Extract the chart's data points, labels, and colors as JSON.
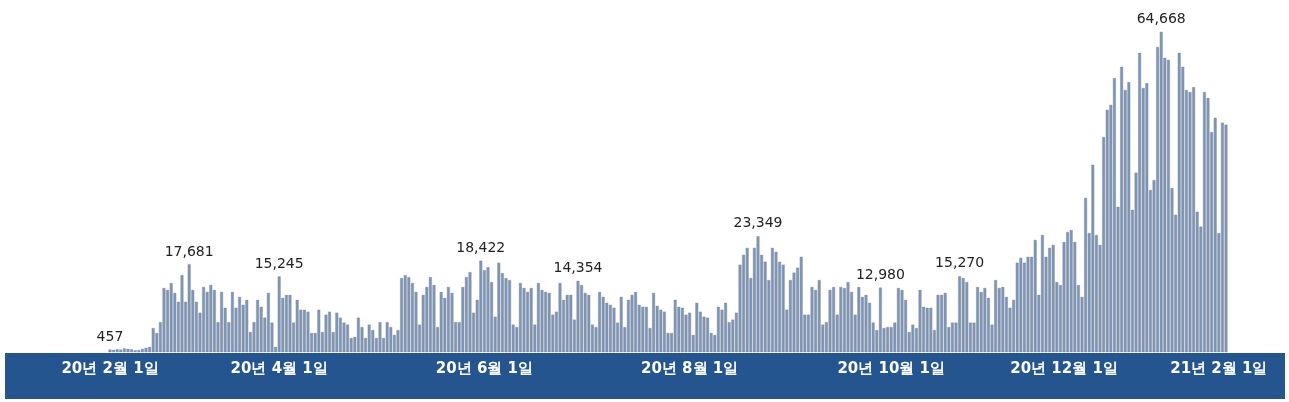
{
  "chart_data": {
    "type": "bar",
    "color": "#7b96bd",
    "categories": [
      "20년 2월 1일",
      null,
      null,
      null,
      null,
      null,
      null,
      null,
      null,
      null,
      null,
      null,
      null,
      null,
      null,
      null,
      null,
      null,
      null,
      null,
      null,
      null,
      null,
      null,
      null,
      null,
      null,
      null,
      null,
      null,
      null,
      null,
      null,
      null,
      null,
      null,
      null,
      null,
      null,
      null,
      null,
      null,
      null,
      null,
      null,
      null,
      null,
      "20년 4월 1일",
      null,
      null,
      null,
      null,
      null,
      null,
      null,
      null,
      null,
      null,
      null,
      null,
      null,
      null,
      null,
      null,
      null,
      null,
      null,
      null,
      null,
      null,
      null,
      null,
      null,
      null,
      null,
      null,
      null,
      null,
      null,
      null,
      null,
      null,
      null,
      null,
      null,
      null,
      null,
      null,
      null,
      null,
      null,
      null,
      null,
      null,
      null,
      null,
      null,
      null,
      null,
      null,
      null,
      null,
      null,
      null,
      "20년 6월 1일",
      null,
      null,
      null,
      null,
      null,
      null,
      null,
      null,
      null,
      null,
      null,
      null,
      null,
      null,
      null,
      null,
      null,
      null,
      null,
      null,
      null,
      null,
      null,
      null,
      null,
      null,
      null,
      null,
      null,
      null,
      null,
      null,
      null,
      null,
      null,
      null,
      null,
      null,
      null,
      null,
      null,
      null,
      null,
      null,
      null,
      null,
      null,
      null,
      null,
      null,
      null,
      null,
      null,
      null,
      null,
      null,
      "20년 8월 1일",
      null,
      null,
      null,
      null,
      null,
      null,
      null,
      null,
      null,
      null,
      null,
      null,
      null,
      null,
      null,
      null,
      null,
      null,
      null,
      null,
      null,
      null,
      null,
      null,
      null,
      null,
      null,
      null,
      null,
      null,
      null,
      null,
      null,
      null,
      null,
      null,
      null,
      null,
      null,
      null,
      null,
      null,
      null,
      null,
      null,
      null,
      null,
      null,
      null,
      null,
      null,
      null,
      null,
      null,
      null,
      "20년 10월 1일",
      null,
      null,
      null,
      null,
      null,
      null,
      null,
      null,
      null,
      null,
      null,
      null,
      null,
      null,
      null,
      null,
      null,
      null,
      null,
      null,
      null,
      null,
      null,
      null,
      null,
      null,
      null,
      null,
      null,
      null,
      null,
      null,
      null,
      null,
      null,
      null,
      null,
      null,
      null,
      null,
      null,
      null,
      null,
      null,
      null,
      null,
      null,
      "20년 12월 1일",
      null,
      null,
      null,
      null,
      null,
      null,
      null,
      null,
      null,
      null,
      null,
      null,
      null,
      null,
      null,
      null,
      null,
      null,
      null,
      null,
      null,
      null,
      null,
      null,
      null,
      null,
      null,
      null,
      null,
      null,
      null,
      null,
      null,
      null,
      null,
      null,
      null,
      null,
      null,
      null,
      null,
      null,
      "21년 2월 1일",
      null,
      null
    ],
    "values": [
      457,
      400,
      500,
      450,
      700,
      600,
      500,
      300,
      350,
      600,
      800,
      1000,
      4800,
      3800,
      6000,
      12900,
      12500,
      13900,
      11900,
      10100,
      15500,
      10100,
      17681,
      12500,
      10100,
      7900,
      13100,
      12100,
      13500,
      12500,
      6000,
      12100,
      8900,
      6000,
      12100,
      8900,
      11100,
      9500,
      10500,
      4000,
      6000,
      10500,
      9100,
      6900,
      11900,
      5900,
      1000,
      15245,
      10900,
      11500,
      11500,
      5900,
      10500,
      8500,
      8500,
      8100,
      3800,
      3800,
      8500,
      4000,
      7500,
      8100,
      4000,
      7900,
      6900,
      5900,
      5500,
      2800,
      3000,
      6900,
      5000,
      2800,
      5500,
      4400,
      2800,
      6000,
      2800,
      6000,
      5000,
      3400,
      4400,
      14900,
      15500,
      15100,
      13900,
      12100,
      5500,
      11500,
      13100,
      15100,
      13500,
      5000,
      12100,
      10900,
      13100,
      11900,
      6000,
      6000,
      13100,
      15100,
      16100,
      7900,
      10500,
      18422,
      16500,
      17100,
      14100,
      7100,
      18000,
      15900,
      14900,
      14500,
      5500,
      5000,
      13900,
      12900,
      12100,
      12900,
      5500,
      13900,
      12500,
      12100,
      11900,
      7500,
      8100,
      13900,
      10500,
      11500,
      11500,
      6500,
      14354,
      13500,
      11900,
      11500,
      5500,
      5000,
      12100,
      11100,
      9900,
      9500,
      8900,
      5900,
      11100,
      5000,
      10500,
      11500,
      12100,
      9500,
      9100,
      9100,
      4800,
      11900,
      9300,
      8500,
      8100,
      3800,
      3800,
      10500,
      9100,
      8900,
      7500,
      7900,
      3400,
      9900,
      8100,
      7100,
      6900,
      3800,
      3400,
      9100,
      8500,
      9900,
      6000,
      6500,
      7900,
      17600,
      19600,
      21000,
      14900,
      21000,
      23349,
      19600,
      18200,
      14500,
      21000,
      20200,
      18200,
      17600,
      8500,
      14500,
      16000,
      17000,
      19200,
      7500,
      7500,
      13100,
      12500,
      14500,
      5500,
      6000,
      12500,
      13100,
      7500,
      13100,
      12900,
      14100,
      12100,
      7500,
      13100,
      11100,
      11500,
      9900,
      5900,
      4400,
      12980,
      4800,
      5000,
      5000,
      5900,
      12900,
      12500,
      10500,
      4000,
      5500,
      4800,
      12500,
      9100,
      8900,
      8900,
      4400,
      11500,
      11500,
      11900,
      5000,
      5900,
      5900,
      15270,
      14900,
      14100,
      5900,
      5900,
      13100,
      12100,
      12900,
      10900,
      5500,
      14500,
      12900,
      13100,
      11100,
      8900,
      10500,
      18000,
      19000,
      18000,
      19200,
      19200,
      22600,
      11500,
      23600,
      19200,
      21000,
      21600,
      14100,
      13500,
      22200,
      24200,
      24600,
      22200,
      13500,
      11100,
      31100,
      24000,
      37800,
      23600,
      21600,
      43400,
      48900,
      49900,
      55300,
      29300,
      57600,
      52900,
      54500,
      28700,
      36200,
      60400,
      53300,
      54300,
      32700,
      34700,
      61600,
      64668,
      59400,
      59000,
      33100,
      27700,
      60400,
      57600,
      52900,
      52500,
      53500,
      28300,
      25300,
      52500,
      51300,
      44400,
      47300,
      24000,
      46300,
      45900
    ],
    "value_labels": [
      "457",
      null,
      null,
      null,
      null,
      null,
      null,
      null,
      null,
      null,
      null,
      null,
      null,
      null,
      null,
      null,
      null,
      null,
      null,
      null,
      null,
      null,
      "17,681",
      null,
      null,
      null,
      null,
      null,
      null,
      null,
      null,
      null,
      null,
      null,
      null,
      null,
      null,
      null,
      null,
      null,
      null,
      null,
      null,
      null,
      null,
      null,
      null,
      "15,245",
      null,
      null,
      null,
      null,
      null,
      null,
      null,
      null,
      null,
      null,
      null,
      null,
      null,
      null,
      null,
      null,
      null,
      null,
      null,
      null,
      null,
      null,
      null,
      null,
      null,
      null,
      null,
      null,
      null,
      null,
      null,
      null,
      null,
      null,
      null,
      null,
      null,
      null,
      null,
      null,
      null,
      null,
      null,
      null,
      null,
      null,
      null,
      null,
      null,
      null,
      null,
      null,
      null,
      null,
      null,
      "18,422",
      null,
      null,
      null,
      null,
      null,
      null,
      null,
      null,
      null,
      null,
      null,
      null,
      null,
      null,
      null,
      null,
      null,
      null,
      null,
      null,
      null,
      null,
      null,
      null,
      null,
      null,
      "14,354",
      null,
      null,
      null,
      null,
      null,
      null,
      null,
      null,
      null,
      null,
      null,
      null,
      null,
      null,
      null,
      null,
      null,
      null,
      null,
      null,
      null,
      null,
      null,
      null,
      null,
      null,
      null,
      null,
      null,
      null,
      null,
      null,
      null,
      null,
      null,
      null,
      null,
      null,
      null,
      null,
      null,
      null,
      null,
      null,
      null,
      null,
      null,
      null,
      null,
      "23,349",
      null,
      null,
      null,
      null,
      null,
      null,
      null,
      null,
      null,
      null,
      null,
      null,
      null,
      null,
      null,
      null,
      null,
      null,
      null,
      null,
      null,
      null,
      null,
      null,
      null,
      null,
      null,
      null,
      null,
      null,
      null,
      null,
      null,
      "12,980",
      null,
      null,
      null,
      null,
      null,
      null,
      null,
      null,
      null,
      null,
      null,
      null,
      null,
      null,
      null,
      null,
      null,
      null,
      null,
      null,
      null,
      "15,270",
      null,
      null,
      null,
      null,
      null,
      null,
      null,
      null,
      null,
      null,
      null,
      null,
      null,
      null,
      null,
      null,
      null,
      null,
      null,
      null,
      null,
      null,
      null,
      null,
      null,
      null,
      null,
      null,
      null,
      null,
      null,
      null,
      null,
      null,
      null,
      null,
      null,
      null,
      null,
      null,
      null,
      null,
      null,
      null,
      null,
      null,
      null,
      null,
      null,
      null,
      null,
      null,
      null,
      null,
      null,
      "64,668",
      null,
      null,
      null,
      null,
      null,
      null,
      null,
      null,
      null,
      null,
      null,
      null,
      null,
      null,
      null,
      null,
      null,
      null
    ]
  }
}
